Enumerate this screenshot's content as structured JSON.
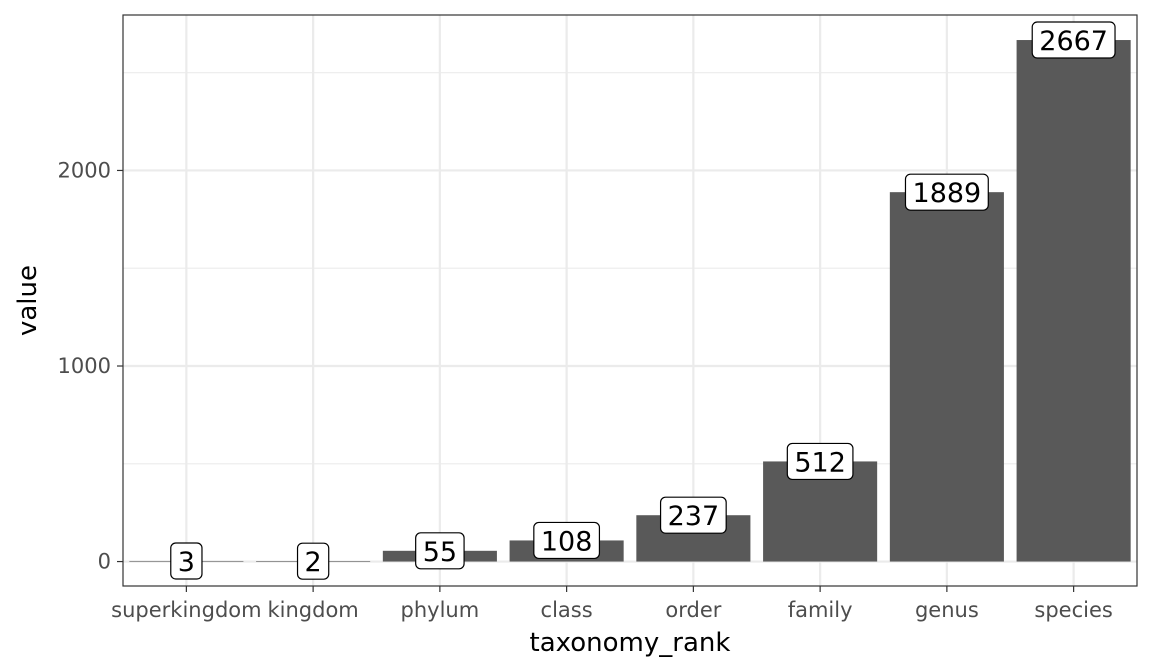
{
  "chart_data": {
    "type": "bar",
    "categories": [
      "superkingdom",
      "kingdom",
      "phylum",
      "class",
      "order",
      "family",
      "genus",
      "species"
    ],
    "values": [
      3,
      2,
      55,
      108,
      237,
      512,
      1889,
      2667
    ],
    "xlabel": "taxonomy_rank",
    "ylabel": "value",
    "ylim": [
      -125,
      2795
    ],
    "yticks": [
      0,
      1000,
      2000
    ],
    "grid": true,
    "bar_color": "#595959",
    "panel_border_color": "#333333",
    "grid_color": "#ebebeb"
  }
}
